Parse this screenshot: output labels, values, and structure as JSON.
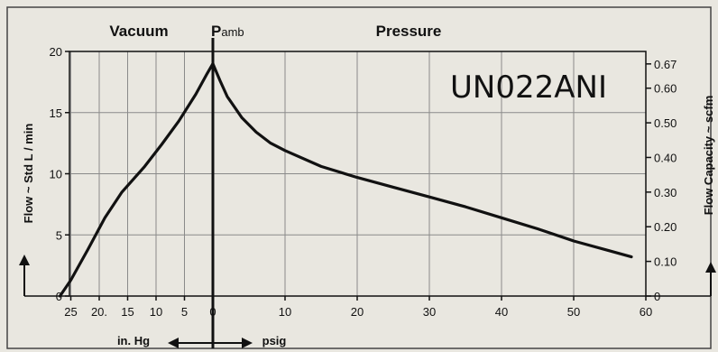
{
  "chart_data": {
    "type": "line",
    "model_label": "UN022ANI",
    "header": {
      "vacuum": "Vacuum",
      "pamb_main": "P",
      "pamb_sub": "amb",
      "pressure": "Pressure"
    },
    "ylabel_left": "Flow ~ Std L / min",
    "ylabel_right": "Flow Capacity ~ scfm",
    "ylim": [
      0,
      20
    ],
    "yticks_left": [
      "0",
      "5",
      "10",
      "15",
      "20"
    ],
    "yticks_right": [
      "0",
      "0.10",
      "0.20",
      "0.30",
      "0.40",
      "0.50",
      "0.60",
      "0.67"
    ],
    "vacuum_ticks": [
      "25",
      "20.",
      "15",
      "10",
      "5",
      "0"
    ],
    "pressure_ticks": [
      "10",
      "20",
      "30",
      "40",
      "50",
      "60"
    ],
    "xlabel_vacuum": "in. Hg",
    "xlabel_pressure": "psig",
    "grid": true,
    "series": [
      {
        "vacuum_points": [
          {
            "inHg": 26.9,
            "flow": 0
          },
          {
            "inHg": 25,
            "flow": 1.3
          },
          {
            "inHg": 22,
            "flow": 3.8
          },
          {
            "inHg": 19,
            "flow": 6.4
          },
          {
            "inHg": 16,
            "flow": 8.5
          },
          {
            "inHg": 12,
            "flow": 10.6
          },
          {
            "inHg": 9,
            "flow": 12.4
          },
          {
            "inHg": 6,
            "flow": 14.3
          },
          {
            "inHg": 3,
            "flow": 16.5
          },
          {
            "inHg": 1,
            "flow": 18.2
          },
          {
            "inHg": 0,
            "flow": 19
          }
        ],
        "pressure_points": [
          {
            "psig": 0,
            "flow": 19
          },
          {
            "psig": 1,
            "flow": 17.6
          },
          {
            "psig": 2,
            "flow": 16.3
          },
          {
            "psig": 4,
            "flow": 14.6
          },
          {
            "psig": 6,
            "flow": 13.4
          },
          {
            "psig": 8,
            "flow": 12.5
          },
          {
            "psig": 10,
            "flow": 11.9
          },
          {
            "psig": 15,
            "flow": 10.6
          },
          {
            "psig": 20,
            "flow": 9.7
          },
          {
            "psig": 25,
            "flow": 8.9
          },
          {
            "psig": 30,
            "flow": 8.1
          },
          {
            "psig": 35,
            "flow": 7.3
          },
          {
            "psig": 40,
            "flow": 6.4
          },
          {
            "psig": 45,
            "flow": 5.5
          },
          {
            "psig": 50,
            "flow": 4.5
          },
          {
            "psig": 55,
            "flow": 3.7
          },
          {
            "psig": 58,
            "flow": 3.2
          }
        ]
      }
    ]
  }
}
